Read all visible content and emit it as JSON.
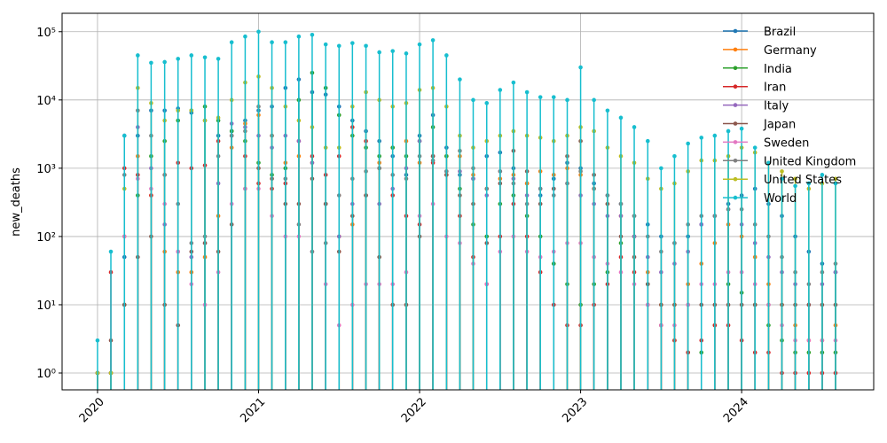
{
  "chart_data": {
    "type": "stem",
    "y_label": "new_deaths",
    "log_scale": true,
    "grid": true,
    "legend_position": "upper right",
    "x": [
      2020,
      2020.083,
      2020.167,
      2020.25,
      2020.333,
      2020.417,
      2020.5,
      2020.583,
      2020.667,
      2020.75,
      2020.833,
      2020.917,
      2021,
      2021.083,
      2021.167,
      2021.25,
      2021.333,
      2021.417,
      2021.5,
      2021.583,
      2021.667,
      2021.75,
      2021.833,
      2021.917,
      2022,
      2022.083,
      2022.167,
      2022.25,
      2022.333,
      2022.417,
      2022.5,
      2022.583,
      2022.667,
      2022.75,
      2022.833,
      2022.917,
      2023,
      2023.083,
      2023.167,
      2023.25,
      2023.333,
      2023.417,
      2023.5,
      2023.583,
      2023.667,
      2023.75,
      2023.833,
      2023.917,
      2024,
      2024.083,
      2024.167,
      2024.25,
      2024.333,
      2024.417,
      2024.5,
      2024.583
    ],
    "xlim": [
      2019.78,
      2024.82
    ],
    "xticks": [
      2020,
      2021,
      2022,
      2023,
      2024
    ],
    "ylim": [
      0.567,
      186000
    ],
    "yticks": [
      {
        "value": 1,
        "label": "10⁰"
      },
      {
        "value": 10,
        "label": "10¹"
      },
      {
        "value": 100,
        "label": "10²"
      },
      {
        "value": 1000,
        "label": "10³"
      },
      {
        "value": 10000,
        "label": "10⁴"
      },
      {
        "value": 100000,
        "label": "10⁵"
      }
    ],
    "series": [
      {
        "name": "Brazil",
        "color": "#1f77b4",
        "values": [
          1,
          1,
          50,
          3000,
          7000,
          7000,
          7500,
          6500,
          5000,
          3000,
          3500,
          5000,
          7000,
          8000,
          15000,
          20000,
          13000,
          12000,
          8000,
          5000,
          3500,
          2500,
          1500,
          800,
          3000,
          6000,
          2000,
          800,
          700,
          1500,
          1700,
          1000,
          600,
          400,
          700,
          1200,
          1000,
          600,
          400,
          300,
          200,
          150,
          100,
          80,
          100,
          150,
          200,
          300,
          400,
          500,
          300,
          200,
          100,
          60,
          40,
          30
        ]
      },
      {
        "name": "Germany",
        "color": "#ff7f0e",
        "values": [
          1,
          1,
          100,
          1500,
          400,
          60,
          30,
          30,
          50,
          200,
          2000,
          4500,
          6000,
          3000,
          1200,
          1500,
          1200,
          300,
          100,
          150,
          400,
          1200,
          2000,
          2500,
          1200,
          1500,
          1500,
          1500,
          800,
          500,
          700,
          800,
          600,
          900,
          800,
          1000,
          800,
          500,
          300,
          200,
          100,
          30,
          10,
          10,
          20,
          40,
          80,
          150,
          100,
          50,
          20,
          10,
          5,
          3,
          3,
          5
        ]
      },
      {
        "name": "India",
        "color": "#2ca02c",
        "values": [
          1,
          1,
          10,
          400,
          1500,
          2500,
          5000,
          7000,
          8000,
          5000,
          3500,
          2500,
          1200,
          800,
          1000,
          10000,
          25000,
          15000,
          6000,
          3000,
          2000,
          1500,
          2000,
          1500,
          2500,
          4000,
          1500,
          500,
          150,
          100,
          300,
          400,
          200,
          100,
          40,
          20,
          10,
          20,
          30,
          80,
          100,
          20,
          5,
          3,
          2,
          2,
          5,
          20,
          15,
          10,
          5,
          3,
          2,
          2,
          2,
          2
        ]
      },
      {
        "name": "Iran",
        "color": "#d62728",
        "values": [
          1,
          30,
          1000,
          800,
          400,
          800,
          1200,
          1000,
          1100,
          2500,
          3000,
          1500,
          600,
          500,
          600,
          2500,
          1500,
          800,
          1500,
          4000,
          2500,
          1000,
          400,
          200,
          150,
          1200,
          800,
          200,
          50,
          20,
          100,
          300,
          100,
          30,
          10,
          5,
          5,
          10,
          20,
          50,
          30,
          10,
          5,
          3,
          2,
          3,
          5,
          5,
          3,
          2,
          2,
          1,
          1,
          1,
          1,
          1
        ]
      },
      {
        "name": "Italy",
        "color": "#9467bd",
        "values": [
          1,
          1,
          3000,
          4000,
          1000,
          150,
          60,
          50,
          80,
          600,
          4500,
          4000,
          3000,
          2000,
          3000,
          2500,
          1200,
          300,
          100,
          300,
          400,
          300,
          500,
          1000,
          2500,
          1500,
          900,
          900,
          700,
          400,
          900,
          700,
          400,
          500,
          500,
          600,
          400,
          300,
          200,
          200,
          100,
          50,
          30,
          40,
          60,
          150,
          200,
          250,
          150,
          80,
          50,
          30,
          20,
          10,
          20,
          30
        ]
      },
      {
        "name": "Japan",
        "color": "#8c564b",
        "values": [
          1,
          3,
          10,
          50,
          100,
          10,
          5,
          60,
          80,
          60,
          150,
          500,
          1000,
          700,
          300,
          300,
          700,
          300,
          60,
          200,
          400,
          50,
          10,
          10,
          100,
          1500,
          800,
          400,
          300,
          80,
          600,
          1800,
          900,
          300,
          500,
          1500,
          2500,
          800,
          300,
          100,
          50,
          20,
          10,
          10,
          10,
          10,
          10,
          10,
          10,
          10,
          10,
          10,
          10,
          10,
          10,
          10
        ]
      },
      {
        "name": "Sweden",
        "color": "#e377c2",
        "values": [
          1,
          1,
          100,
          700,
          500,
          300,
          60,
          20,
          10,
          30,
          300,
          500,
          500,
          200,
          100,
          100,
          60,
          20,
          5,
          10,
          20,
          20,
          20,
          30,
          200,
          300,
          100,
          80,
          40,
          20,
          60,
          100,
          60,
          50,
          60,
          80,
          80,
          50,
          40,
          30,
          20,
          10,
          5,
          5,
          10,
          20,
          20,
          30,
          30,
          20,
          10,
          5,
          3,
          3,
          3,
          3
        ]
      },
      {
        "name": "United Kingdom",
        "color": "#7f7f7f",
        "values": [
          1,
          1,
          800,
          7000,
          3000,
          800,
          300,
          80,
          100,
          1500,
          3000,
          3500,
          8000,
          3000,
          700,
          150,
          60,
          80,
          400,
          700,
          900,
          1000,
          800,
          700,
          1500,
          1300,
          900,
          1800,
          1000,
          500,
          900,
          600,
          300,
          500,
          400,
          600,
          900,
          500,
          400,
          300,
          200,
          100,
          60,
          80,
          150,
          200,
          200,
          250,
          250,
          150,
          100,
          50,
          30,
          20,
          30,
          40
        ]
      },
      {
        "name": "United States",
        "color": "#bcbd22",
        "values": [
          1,
          1,
          500,
          15000,
          9000,
          5000,
          7000,
          7000,
          5000,
          5500,
          10000,
          18000,
          22000,
          15000,
          8000,
          5000,
          4000,
          2000,
          2000,
          8000,
          13000,
          10000,
          8000,
          9000,
          14000,
          15000,
          8000,
          3000,
          2000,
          2500,
          3000,
          3500,
          3000,
          2800,
          2500,
          3000,
          4000,
          3500,
          2000,
          1500,
          1200,
          700,
          500,
          600,
          900,
          1300,
          1300,
          1500,
          2000,
          1700,
          1200,
          900,
          700,
          500,
          600,
          700
        ]
      },
      {
        "name": "World",
        "color": "#17becf",
        "values": [
          3,
          60,
          3000,
          45000,
          35000,
          36000,
          40000,
          45000,
          42000,
          40000,
          70000,
          85000,
          100000,
          70000,
          70000,
          85000,
          90000,
          65000,
          62000,
          68000,
          62000,
          50000,
          52000,
          48000,
          65000,
          75000,
          45000,
          20000,
          10000,
          9000,
          14000,
          18000,
          13000,
          11000,
          11000,
          10000,
          30000,
          10000,
          7000,
          5500,
          4000,
          2500,
          1000,
          1500,
          2300,
          2800,
          3000,
          3500,
          3800,
          2000,
          1200,
          700,
          550,
          600,
          800,
          600
        ]
      }
    ]
  }
}
